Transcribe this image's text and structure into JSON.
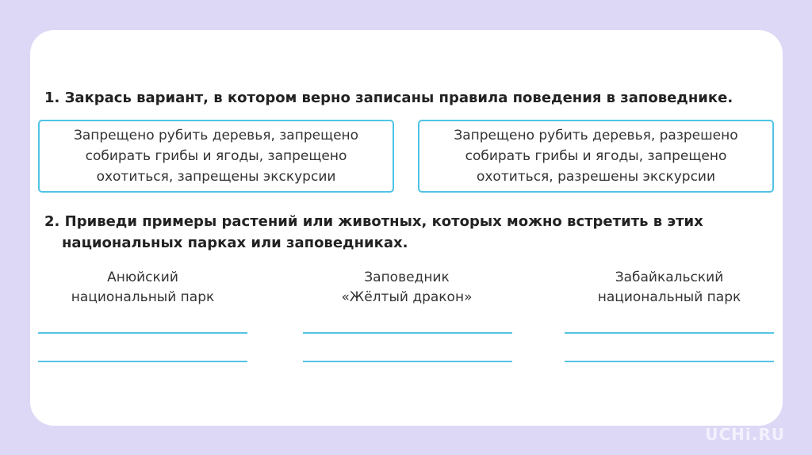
{
  "task1": {
    "title": "1. Закрась вариант, в котором верно записаны правила поведения в заповеднике.",
    "options": [
      {
        "text": "Запрещено рубить деревья, запрещено собирать грибы и ягоды, запрещено охотиться, запрещены экскурсии"
      },
      {
        "text": "Запрещено рубить деревья, разрешено собирать грибы и ягоды, запрещено охотиться, разрешены экскурсии"
      }
    ]
  },
  "task2": {
    "title_line1": "2. Приведи примеры растений или животных, которых можно встретить в этих",
    "title_line2": "национальных парках или заповедниках.",
    "parks": [
      {
        "line1": "Анюйский",
        "line2": "национальный парк"
      },
      {
        "line1": "Заповедник",
        "line2": "«Жёлтый дракон»"
      },
      {
        "line1": "Забайкальский",
        "line2": "национальный парк"
      }
    ]
  },
  "watermark": "UCHi.RU",
  "colors": {
    "background": "#ddd8f6",
    "accent": "#4fc3e6"
  }
}
